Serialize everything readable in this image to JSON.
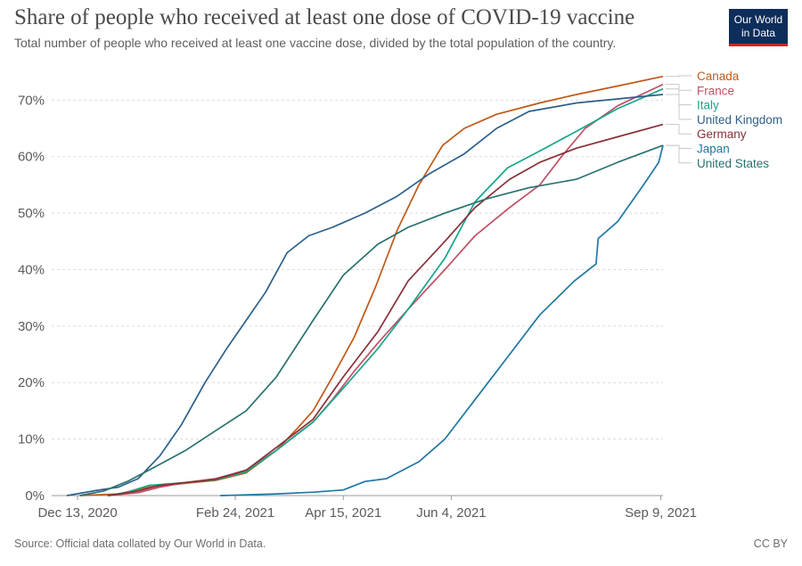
{
  "header": {
    "title": "Share of people who received at least one dose of COVID-19 vaccine",
    "subtitle": "Total number of people who received at least one vaccine dose, divided by the total population of the country."
  },
  "logo": {
    "line1": "Our World",
    "line2": "in Data",
    "bg_color": "#0d2d5a",
    "accent_color": "#ce261e"
  },
  "footer": {
    "source": "Source: Official data collated by Our World in Data.",
    "license": "CC BY"
  },
  "chart_data": {
    "type": "line",
    "title": "Share of people who received at least one dose of COVID-19 vaccine",
    "subtitle": "Total number of people who received at least one vaccine dose, divided by the total population of the country.",
    "xlabel": "",
    "ylabel": "",
    "x_range": [
      "2020-12-01",
      "2021-09-10"
    ],
    "x_ticks": [
      {
        "date": "2020-12-13",
        "label": "Dec 13, 2020"
      },
      {
        "date": "2021-02-24",
        "label": "Feb 24, 2021"
      },
      {
        "date": "2021-04-15",
        "label": "Apr 15, 2021"
      },
      {
        "date": "2021-06-04",
        "label": "Jun 4, 2021"
      },
      {
        "date": "2021-09-09",
        "label": "Sep 9, 2021"
      }
    ],
    "y_range": [
      0,
      74
    ],
    "y_ticks": [
      0,
      10,
      20,
      30,
      40,
      50,
      60,
      70
    ],
    "y_tick_format": "percent",
    "grid": true,
    "legend_position": "right-end-labels",
    "series": [
      {
        "name": "Canada",
        "color": "#c05917",
        "points": [
          [
            "2020-12-14",
            0
          ],
          [
            "2021-01-01",
            0.3
          ],
          [
            "2021-01-15",
            1.5
          ],
          [
            "2021-02-01",
            2.2
          ],
          [
            "2021-02-15",
            2.7
          ],
          [
            "2021-03-01",
            4
          ],
          [
            "2021-03-15",
            8
          ],
          [
            "2021-03-25",
            12
          ],
          [
            "2021-04-01",
            15
          ],
          [
            "2021-04-10",
            21
          ],
          [
            "2021-04-20",
            28
          ],
          [
            "2021-04-30",
            37
          ],
          [
            "2021-05-10",
            47
          ],
          [
            "2021-05-20",
            55
          ],
          [
            "2021-05-31",
            62
          ],
          [
            "2021-06-10",
            65
          ],
          [
            "2021-06-25",
            67.5
          ],
          [
            "2021-07-15",
            69.5
          ],
          [
            "2021-08-01",
            71
          ],
          [
            "2021-08-20",
            72.5
          ],
          [
            "2021-09-10",
            74.2
          ]
        ]
      },
      {
        "name": "France",
        "color": "#c15065",
        "points": [
          [
            "2020-12-27",
            0
          ],
          [
            "2021-01-10",
            0.5
          ],
          [
            "2021-01-20",
            1.5
          ],
          [
            "2021-02-01",
            2.3
          ],
          [
            "2021-02-15",
            3
          ],
          [
            "2021-03-01",
            4.5
          ],
          [
            "2021-03-15",
            8
          ],
          [
            "2021-03-25",
            11
          ],
          [
            "2021-04-01",
            13
          ],
          [
            "2021-04-10",
            17
          ],
          [
            "2021-04-20",
            22
          ],
          [
            "2021-05-01",
            27
          ],
          [
            "2021-05-15",
            33
          ],
          [
            "2021-06-01",
            40
          ],
          [
            "2021-06-15",
            46
          ],
          [
            "2021-07-01",
            51
          ],
          [
            "2021-07-15",
            55
          ],
          [
            "2021-07-25",
            60
          ],
          [
            "2021-08-05",
            65
          ],
          [
            "2021-08-20",
            69
          ],
          [
            "2021-09-10",
            72.8
          ]
        ]
      },
      {
        "name": "Italy",
        "color": "#18a58a",
        "points": [
          [
            "2020-12-27",
            0
          ],
          [
            "2021-01-05",
            0.6
          ],
          [
            "2021-01-15",
            1.8
          ],
          [
            "2021-02-01",
            2.3
          ],
          [
            "2021-02-15",
            2.8
          ],
          [
            "2021-03-01",
            4.2
          ],
          [
            "2021-03-15",
            8
          ],
          [
            "2021-04-01",
            13
          ],
          [
            "2021-04-15",
            19
          ],
          [
            "2021-05-01",
            26
          ],
          [
            "2021-05-15",
            33
          ],
          [
            "2021-06-01",
            42
          ],
          [
            "2021-06-15",
            52
          ],
          [
            "2021-06-30",
            58
          ],
          [
            "2021-07-15",
            61
          ],
          [
            "2021-08-01",
            64.5
          ],
          [
            "2021-08-20",
            68.5
          ],
          [
            "2021-09-10",
            72
          ]
        ]
      },
      {
        "name": "United Kingdom",
        "color": "#2c5f8a",
        "points": [
          [
            "2020-12-08",
            0
          ],
          [
            "2020-12-20",
            0.8
          ],
          [
            "2021-01-01",
            1.5
          ],
          [
            "2021-01-10",
            3
          ],
          [
            "2021-01-20",
            7
          ],
          [
            "2021-01-30",
            12.5
          ],
          [
            "2021-02-10",
            20
          ],
          [
            "2021-02-20",
            26
          ],
          [
            "2021-03-01",
            31
          ],
          [
            "2021-03-10",
            36
          ],
          [
            "2021-03-20",
            43
          ],
          [
            "2021-03-30",
            46
          ],
          [
            "2021-04-10",
            47.5
          ],
          [
            "2021-04-25",
            50
          ],
          [
            "2021-05-10",
            53
          ],
          [
            "2021-05-25",
            57
          ],
          [
            "2021-06-10",
            60.5
          ],
          [
            "2021-06-25",
            65
          ],
          [
            "2021-07-10",
            68
          ],
          [
            "2021-08-01",
            69.5
          ],
          [
            "2021-09-10",
            71
          ]
        ]
      },
      {
        "name": "Germany",
        "color": "#883039",
        "points": [
          [
            "2020-12-27",
            0
          ],
          [
            "2021-01-10",
            0.8
          ],
          [
            "2021-01-20",
            1.8
          ],
          [
            "2021-02-01",
            2.3
          ],
          [
            "2021-02-15",
            2.9
          ],
          [
            "2021-03-01",
            4.5
          ],
          [
            "2021-03-15",
            8.5
          ],
          [
            "2021-04-01",
            13.5
          ],
          [
            "2021-04-15",
            21
          ],
          [
            "2021-05-01",
            29
          ],
          [
            "2021-05-15",
            38
          ],
          [
            "2021-06-01",
            45
          ],
          [
            "2021-06-15",
            51
          ],
          [
            "2021-07-01",
            56
          ],
          [
            "2021-07-15",
            59
          ],
          [
            "2021-08-01",
            61.5
          ],
          [
            "2021-08-20",
            63.5
          ],
          [
            "2021-09-10",
            65.7
          ]
        ]
      },
      {
        "name": "Japan",
        "color": "#1f77a4",
        "points": [
          [
            "2021-02-17",
            0
          ],
          [
            "2021-03-15",
            0.3
          ],
          [
            "2021-04-01",
            0.6
          ],
          [
            "2021-04-15",
            1
          ],
          [
            "2021-04-25",
            2.5
          ],
          [
            "2021-05-05",
            3
          ],
          [
            "2021-05-20",
            6
          ],
          [
            "2021-06-01",
            10
          ],
          [
            "2021-06-15",
            17
          ],
          [
            "2021-07-01",
            25
          ],
          [
            "2021-07-15",
            32
          ],
          [
            "2021-07-31",
            38
          ],
          [
            "2021-08-10",
            41
          ],
          [
            "2021-08-11",
            45.5
          ],
          [
            "2021-08-20",
            48.5
          ],
          [
            "2021-09-01",
            55
          ],
          [
            "2021-09-08",
            59
          ],
          [
            "2021-09-10",
            62
          ]
        ]
      },
      {
        "name": "United States",
        "color": "#287270",
        "points": [
          [
            "2020-12-14",
            0
          ],
          [
            "2020-12-25",
            0.8
          ],
          [
            "2021-01-05",
            2.5
          ],
          [
            "2021-01-15",
            4.5
          ],
          [
            "2021-02-01",
            8
          ],
          [
            "2021-02-15",
            11.5
          ],
          [
            "2021-03-01",
            15
          ],
          [
            "2021-03-15",
            21
          ],
          [
            "2021-04-01",
            31
          ],
          [
            "2021-04-15",
            39
          ],
          [
            "2021-05-01",
            44.5
          ],
          [
            "2021-05-15",
            47.5
          ],
          [
            "2021-06-01",
            50
          ],
          [
            "2021-06-20",
            52.5
          ],
          [
            "2021-07-10",
            54.5
          ],
          [
            "2021-08-01",
            56
          ],
          [
            "2021-08-20",
            59
          ],
          [
            "2021-09-10",
            62
          ]
        ]
      }
    ],
    "end_labels": [
      {
        "series": "Canada",
        "text": "Canada"
      },
      {
        "series": "France",
        "text": "France"
      },
      {
        "series": "Italy",
        "text": "Italy"
      },
      {
        "series": "United Kingdom",
        "text": "United Kingdom"
      },
      {
        "series": "Germany",
        "text": "Germany"
      },
      {
        "series": "Japan",
        "text": "Japan"
      },
      {
        "series": "United States",
        "text": "United States"
      }
    ]
  }
}
